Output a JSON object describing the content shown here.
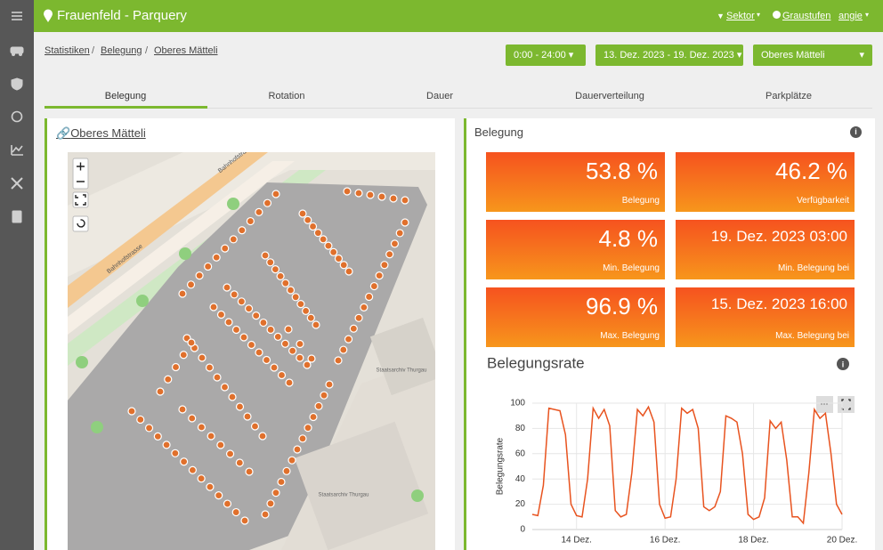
{
  "header": {
    "title": "Frauenfeld - Parquery",
    "sector": "Sektor",
    "grayscale": "Graustufen",
    "user": "angie"
  },
  "breadcrumbs": [
    "Statistiken",
    "Belegung",
    "Oberes Mätteli"
  ],
  "filters": {
    "time": "0:00 - 24:00",
    "dates": "13. Dez. 2023 - 19. Dez. 2023",
    "area": "Oberes Mätteli"
  },
  "tabs": [
    "Belegung",
    "Rotation",
    "Dauer",
    "Dauerverteilung",
    "Parkplätze"
  ],
  "map_panel": {
    "title": "Oberes Mätteli",
    "labels": [
      "Bahnhofstrasse",
      "Bahnhofstrasse",
      "Staatsarchiv Thurgau",
      "Staatsarchiv Thurgau"
    ]
  },
  "stats_panel": {
    "title": "Belegung",
    "cards": [
      {
        "value": "53.8 %",
        "label": "Belegung"
      },
      {
        "value": "46.2 %",
        "label": "Verfügbarkeit"
      },
      {
        "value": "4.8 %",
        "label": "Min. Belegung"
      },
      {
        "value": "19. Dez. 2023 03:00",
        "label": "Min. Belegung bei"
      },
      {
        "value": "96.9 %",
        "label": "Max. Belegung"
      },
      {
        "value": "15. Dez. 2023 16:00",
        "label": "Max. Belegung bei"
      }
    ]
  },
  "chart_data": {
    "type": "line",
    "title": "Belegungsrate",
    "y_label": "Belegungsrate",
    "color": "#e8531f",
    "x": [
      13,
      13.125,
      13.25,
      13.375,
      13.5,
      13.625,
      13.75,
      13.875,
      14,
      14.125,
      14.25,
      14.375,
      14.5,
      14.625,
      14.75,
      14.875,
      15,
      15.125,
      15.25,
      15.375,
      15.5,
      15.625,
      15.75,
      15.875,
      16,
      16.125,
      16.25,
      16.375,
      16.5,
      16.625,
      16.75,
      16.875,
      17,
      17.125,
      17.25,
      17.375,
      17.5,
      17.625,
      17.75,
      17.875,
      18,
      18.125,
      18.25,
      18.375,
      18.5,
      18.625,
      18.75,
      18.875,
      19,
      19.125,
      19.25,
      19.375,
      19.5,
      19.625,
      19.75,
      19.875,
      20
    ],
    "values": [
      12,
      11,
      35,
      96,
      95,
      94,
      75,
      20,
      11,
      10,
      40,
      96,
      88,
      95,
      82,
      15,
      10,
      12,
      45,
      95,
      90,
      97,
      85,
      20,
      9,
      10,
      40,
      96,
      92,
      95,
      80,
      18,
      15,
      18,
      30,
      90,
      88,
      85,
      60,
      12,
      8,
      10,
      25,
      86,
      80,
      85,
      55,
      10,
      10,
      5,
      45,
      95,
      88,
      92,
      60,
      20,
      12
    ],
    "xlim": [
      13,
      20
    ],
    "xticks": [
      {
        "value": 14,
        "label": "14 Dez."
      },
      {
        "value": 16,
        "label": "16 Dez."
      },
      {
        "value": 18,
        "label": "18 Dez."
      },
      {
        "value": 20,
        "label": "20 Dez."
      }
    ],
    "ylim": [
      0,
      100
    ],
    "yticks": [
      0,
      20,
      40,
      60,
      80,
      100
    ],
    "grid": true
  }
}
